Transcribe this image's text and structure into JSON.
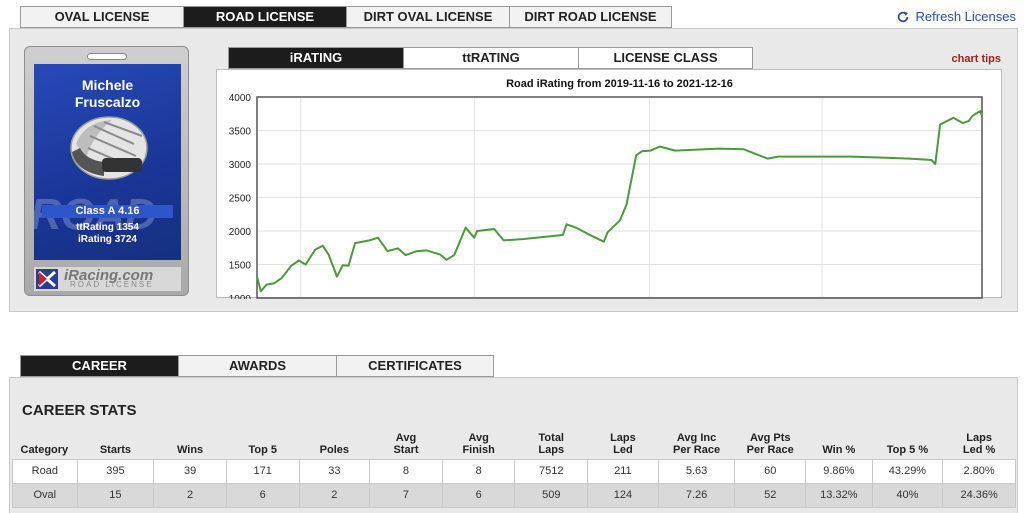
{
  "license_tabs": [
    "OVAL LICENSE",
    "ROAD LICENSE",
    "DIRT OVAL LICENSE",
    "DIRT ROAD LICENSE"
  ],
  "refresh_label": "Refresh Licenses",
  "card": {
    "first_name": "Michele",
    "last_name": "Fruscalzo",
    "class": "Class A 4.16",
    "tt_rating": "ttRating 1354",
    "i_rating": "iRating 3724",
    "brand": "iRacing.com",
    "brand_sub": "ROAD LICENSE",
    "background_word": "ROAD"
  },
  "chart_tabs": [
    "iRATING",
    "ttRATING",
    "LICENSE CLASS"
  ],
  "chart_tips": "chart tips",
  "chart_data": {
    "type": "line",
    "title": "Road iRating from 2019-11-16 to 2021-12-16",
    "xlabel": "",
    "ylabel": "",
    "x_range": [
      "2019-11-16",
      "2021-12-16"
    ],
    "xticks": [
      "2020-01-01",
      "2020-07-01",
      "2021-01-01",
      "2021-07-01"
    ],
    "ylim": [
      1000,
      4000
    ],
    "yticks": [
      1000,
      1500,
      2000,
      2500,
      3000,
      3500,
      4000
    ],
    "grid": true,
    "line_color": "#4c9a3a",
    "series": [
      {
        "points": [
          [
            "2019-11-16",
            1320
          ],
          [
            "2019-11-20",
            1100
          ],
          [
            "2019-11-26",
            1200
          ],
          [
            "2019-12-04",
            1220
          ],
          [
            "2019-12-12",
            1300
          ],
          [
            "2019-12-22",
            1480
          ],
          [
            "2019-12-30",
            1560
          ],
          [
            "2020-01-06",
            1500
          ],
          [
            "2020-01-16",
            1720
          ],
          [
            "2020-01-24",
            1780
          ],
          [
            "2020-01-30",
            1650
          ],
          [
            "2020-02-08",
            1320
          ],
          [
            "2020-02-14",
            1490
          ],
          [
            "2020-02-20",
            1480
          ],
          [
            "2020-02-27",
            1820
          ],
          [
            "2020-03-13",
            1860
          ],
          [
            "2020-03-22",
            1900
          ],
          [
            "2020-04-01",
            1700
          ],
          [
            "2020-04-12",
            1740
          ],
          [
            "2020-04-20",
            1640
          ],
          [
            "2020-05-02",
            1700
          ],
          [
            "2020-05-12",
            1710
          ],
          [
            "2020-05-26",
            1650
          ],
          [
            "2020-06-02",
            1570
          ],
          [
            "2020-06-10",
            1640
          ],
          [
            "2020-06-22",
            2050
          ],
          [
            "2020-07-01",
            1900
          ],
          [
            "2020-07-04",
            2000
          ],
          [
            "2020-07-22",
            2030
          ],
          [
            "2020-08-01",
            1860
          ],
          [
            "2020-08-22",
            1880
          ],
          [
            "2020-10-02",
            1940
          ],
          [
            "2020-10-06",
            2100
          ],
          [
            "2020-10-16",
            2050
          ],
          [
            "2020-10-29",
            1950
          ],
          [
            "2020-11-14",
            1840
          ],
          [
            "2020-11-18",
            1980
          ],
          [
            "2020-12-01",
            2160
          ],
          [
            "2020-12-08",
            2400
          ],
          [
            "2020-12-18",
            3130
          ],
          [
            "2020-12-24",
            3190
          ],
          [
            "2021-01-02",
            3200
          ],
          [
            "2021-01-12",
            3260
          ],
          [
            "2021-01-28",
            3200
          ],
          [
            "2021-03-15",
            3230
          ],
          [
            "2021-04-10",
            3220
          ],
          [
            "2021-05-05",
            3080
          ],
          [
            "2021-05-16",
            3110
          ],
          [
            "2021-08-01",
            3110
          ],
          [
            "2021-10-01",
            3080
          ],
          [
            "2021-10-24",
            3060
          ],
          [
            "2021-10-28",
            3000
          ],
          [
            "2021-11-02",
            3590
          ],
          [
            "2021-11-16",
            3690
          ],
          [
            "2021-11-26",
            3610
          ],
          [
            "2021-12-02",
            3640
          ],
          [
            "2021-12-06",
            3720
          ],
          [
            "2021-12-14",
            3790
          ],
          [
            "2021-12-16",
            3720
          ]
        ]
      }
    ]
  },
  "career_tabs": [
    "CAREER",
    "AWARDS",
    "CERTIFICATES"
  ],
  "career": {
    "title": "CAREER STATS",
    "headers": [
      [
        "Category"
      ],
      [
        "Starts"
      ],
      [
        "Wins"
      ],
      [
        "Top 5"
      ],
      [
        "Poles"
      ],
      [
        "Avg",
        "Start"
      ],
      [
        "Avg",
        "Finish"
      ],
      [
        "Total",
        "Laps"
      ],
      [
        "Laps",
        "Led"
      ],
      [
        "Avg Inc",
        "Per Race"
      ],
      [
        "Avg Pts",
        "Per Race"
      ],
      [
        "Win %"
      ],
      [
        "Top 5 %"
      ],
      [
        "Laps",
        "Led %"
      ]
    ],
    "rows": [
      [
        "Road",
        "395",
        "39",
        "171",
        "33",
        "8",
        "8",
        "7512",
        "211",
        "5.63",
        "60",
        "9.86%",
        "43.29%",
        "2.80%"
      ],
      [
        "Oval",
        "15",
        "2",
        "6",
        "2",
        "7",
        "6",
        "509",
        "124",
        "7.26",
        "52",
        "13.32%",
        "40%",
        "24.36%"
      ]
    ]
  }
}
